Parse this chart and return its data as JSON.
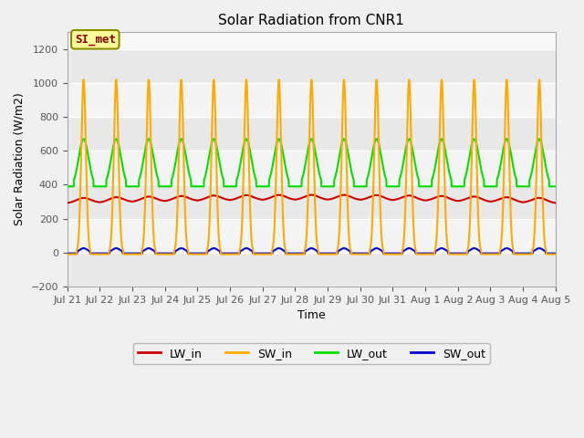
{
  "title": "Solar Radiation from CNR1",
  "xlabel": "Time",
  "ylabel": "Solar Radiation (W/m2)",
  "ylim": [
    -200,
    1300
  ],
  "yticks": [
    -200,
    0,
    200,
    400,
    600,
    800,
    1000,
    1200
  ],
  "annotation": "SI_met",
  "fig_bg_color": "#f0f0f0",
  "plot_bg_color": "#f8f8f8",
  "band_color_even": "#e8e8e8",
  "band_color_odd": "#f8f8f8",
  "legend_labels": [
    "LW_in",
    "SW_in",
    "LW_out",
    "SW_out"
  ],
  "line_colors": {
    "LW_in": "#cc0000",
    "SW_in": "#ffaa00",
    "LW_out": "#00dd00",
    "SW_out": "#0000cc"
  },
  "n_days": 15,
  "tick_labels": [
    "Jul 21",
    "Jul 22",
    "Jul 23",
    "Jul 24",
    "Jul 25",
    "Jul 26",
    "Jul 27",
    "Jul 28",
    "Jul 29",
    "Jul 30",
    "Jul 31",
    "Aug 1",
    "Aug 2",
    "Aug 3",
    "Aug 4",
    "Aug 5"
  ],
  "SW_in_peak": 1020,
  "LW_out_peak": 670,
  "LW_out_night": 390,
  "LW_in_base": 290,
  "LW_in_amp": 30,
  "SW_out_peak": 25,
  "pts_per_day": 144
}
